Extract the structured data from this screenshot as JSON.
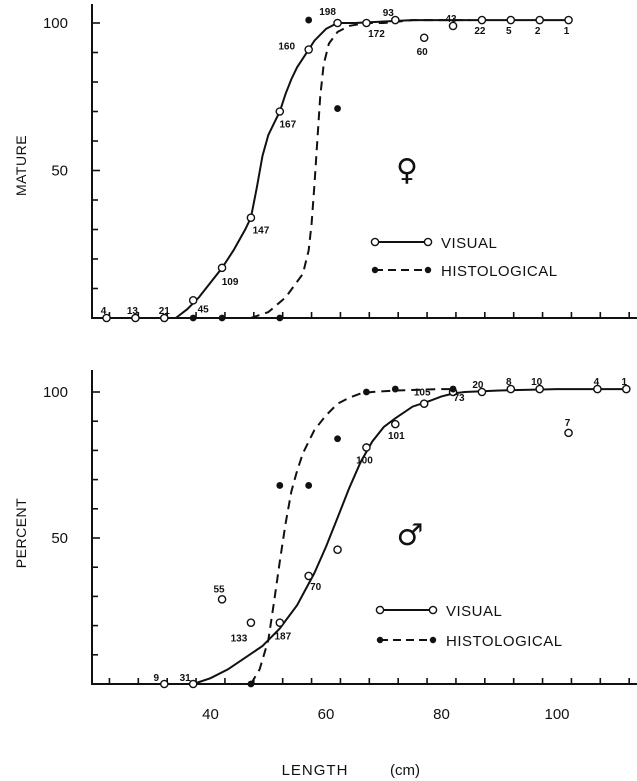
{
  "chart_data": [
    {
      "type": "scatter",
      "panel": "female",
      "symbol": "♀",
      "ylabel": "MATURE",
      "ylim": [
        0,
        100
      ],
      "yticks": [
        50,
        100
      ],
      "xlim": [
        20,
        113
      ],
      "legend": [
        {
          "name": "VISUAL",
          "style": "solid-open"
        },
        {
          "name": "HISTOLOGICAL",
          "style": "dashed-filled"
        }
      ],
      "series": [
        {
          "name": "VISUAL",
          "points": [
            {
              "x": 22,
              "y": 0,
              "n": "4"
            },
            {
              "x": 27,
              "y": 0,
              "n": "13"
            },
            {
              "x": 32,
              "y": 0,
              "n": "21"
            },
            {
              "x": 37,
              "y": 6,
              "n": "45"
            },
            {
              "x": 42,
              "y": 17,
              "n": "109"
            },
            {
              "x": 47,
              "y": 34,
              "n": "147"
            },
            {
              "x": 52,
              "y": 70,
              "n": "167"
            },
            {
              "x": 57,
              "y": 91,
              "n": "160"
            },
            {
              "x": 62,
              "y": 100,
              "n": "198"
            },
            {
              "x": 67,
              "y": 100,
              "n": "172"
            },
            {
              "x": 72,
              "y": 101,
              "n": "93"
            },
            {
              "x": 77,
              "y": 95,
              "n": "60"
            },
            {
              "x": 82,
              "y": 99,
              "n": "43"
            },
            {
              "x": 87,
              "y": 101,
              "n": "22"
            },
            {
              "x": 92,
              "y": 101,
              "n": "5"
            },
            {
              "x": 97,
              "y": 101,
              "n": "2"
            },
            {
              "x": 102,
              "y": 101,
              "n": "1"
            }
          ],
          "curve": [
            [
              34,
              0
            ],
            [
              36,
              3
            ],
            [
              38,
              7
            ],
            [
              40,
              12
            ],
            [
              42,
              17
            ],
            [
              44,
              23
            ],
            [
              46,
              30
            ],
            [
              47,
              34
            ],
            [
              48,
              44
            ],
            [
              49,
              55
            ],
            [
              50,
              62
            ],
            [
              51,
              66
            ],
            [
              52,
              70
            ],
            [
              53,
              76
            ],
            [
              54,
              81
            ],
            [
              55,
              85
            ],
            [
              56,
              88
            ],
            [
              57,
              91
            ],
            [
              58,
              94
            ],
            [
              59,
              96
            ],
            [
              60,
              98
            ],
            [
              61,
              99
            ],
            [
              62,
              100
            ],
            [
              65,
              100
            ],
            [
              70,
              100.5
            ],
            [
              75,
              101
            ],
            [
              80,
              101
            ],
            [
              90,
              101
            ],
            [
              102,
              101
            ]
          ]
        },
        {
          "name": "HISTOLOGICAL",
          "points": [
            {
              "x": 37,
              "y": 0
            },
            {
              "x": 42,
              "y": 0
            },
            {
              "x": 52,
              "y": 0
            },
            {
              "x": 57,
              "y": 101
            },
            {
              "x": 62,
              "y": 71
            }
          ],
          "curve": [
            [
              47,
              0
            ],
            [
              50,
              2
            ],
            [
              53,
              7
            ],
            [
              56,
              15
            ],
            [
              57,
              23
            ],
            [
              57.5,
              32
            ],
            [
              58,
              45
            ],
            [
              58.5,
              60
            ],
            [
              59,
              75
            ],
            [
              59.6,
              86
            ],
            [
              60.5,
              93
            ],
            [
              62,
              97
            ],
            [
              64,
              99
            ],
            [
              67,
              100
            ],
            [
              70,
              100
            ],
            [
              75,
              101
            ],
            [
              85,
              101
            ]
          ]
        }
      ]
    },
    {
      "type": "scatter",
      "panel": "male",
      "symbol": "♂",
      "ylabel": "PERCENT",
      "ylim": [
        0,
        100
      ],
      "yticks": [
        50,
        100
      ],
      "xlim": [
        20,
        113
      ],
      "xticks": [
        40,
        60,
        80,
        100
      ],
      "xlabel": "LENGTH",
      "xunit": "(cm)",
      "legend": [
        {
          "name": "VISUAL",
          "style": "solid-open"
        },
        {
          "name": "HISTOLOGICAL",
          "style": "dashed-filled"
        }
      ],
      "series": [
        {
          "name": "VISUAL",
          "points": [
            {
              "x": 32,
              "y": 0,
              "n": "9"
            },
            {
              "x": 37,
              "y": 0,
              "n": "31"
            },
            {
              "x": 42,
              "y": 29,
              "n": "55"
            },
            {
              "x": 47,
              "y": 21,
              "n": "133"
            },
            {
              "x": 52,
              "y": 21,
              "n": "187"
            },
            {
              "x": 57,
              "y": 37,
              "n": "70"
            },
            {
              "x": 62,
              "y": 46
            },
            {
              "x": 67,
              "y": 81,
              "n": "100"
            },
            {
              "x": 72,
              "y": 89,
              "n": "101"
            },
            {
              "x": 77,
              "y": 96,
              "n": "105"
            },
            {
              "x": 82,
              "y": 100,
              "n": "73"
            },
            {
              "x": 87,
              "y": 100,
              "n": "20"
            },
            {
              "x": 92,
              "y": 101,
              "n": "8"
            },
            {
              "x": 97,
              "y": 101,
              "n": "10"
            },
            {
              "x": 102,
              "y": 86,
              "n": "7"
            },
            {
              "x": 107,
              "y": 101,
              "n": "4"
            },
            {
              "x": 112,
              "y": 101,
              "n": "1"
            }
          ],
          "curve": [
            [
              37,
              0
            ],
            [
              40,
              2
            ],
            [
              43,
              5
            ],
            [
              46,
              9
            ],
            [
              49,
              13
            ],
            [
              52,
              19
            ],
            [
              55,
              27
            ],
            [
              58,
              38
            ],
            [
              60,
              47
            ],
            [
              62,
              57
            ],
            [
              64,
              67
            ],
            [
              66,
              76
            ],
            [
              68,
              83
            ],
            [
              70,
              88
            ],
            [
              72,
              91
            ],
            [
              75,
              95
            ],
            [
              78,
              97
            ],
            [
              80,
              98.5
            ],
            [
              82,
              99.5
            ],
            [
              84,
              100
            ],
            [
              90,
              100.5
            ],
            [
              100,
              101
            ],
            [
              112,
              101
            ]
          ]
        },
        {
          "name": "HISTOLOGICAL",
          "points": [
            {
              "x": 47,
              "y": 0
            },
            {
              "x": 52,
              "y": 68
            },
            {
              "x": 57,
              "y": 68
            },
            {
              "x": 62,
              "y": 84
            },
            {
              "x": 67,
              "y": 100
            },
            {
              "x": 72,
              "y": 101
            },
            {
              "x": 82,
              "y": 101
            }
          ],
          "curve": [
            [
              47,
              0
            ],
            [
              48.5,
              5
            ],
            [
              50,
              15
            ],
            [
              51,
              28
            ],
            [
              52,
              42
            ],
            [
              53,
              55
            ],
            [
              54,
              66
            ],
            [
              55,
              73
            ],
            [
              56,
              79
            ],
            [
              58,
              87
            ],
            [
              60,
              92
            ],
            [
              62,
              96
            ],
            [
              64,
              98
            ],
            [
              66,
              99.5
            ],
            [
              68,
              100
            ],
            [
              72,
              100.5
            ],
            [
              80,
              101
            ],
            [
              82,
              101
            ]
          ]
        }
      ]
    }
  ]
}
